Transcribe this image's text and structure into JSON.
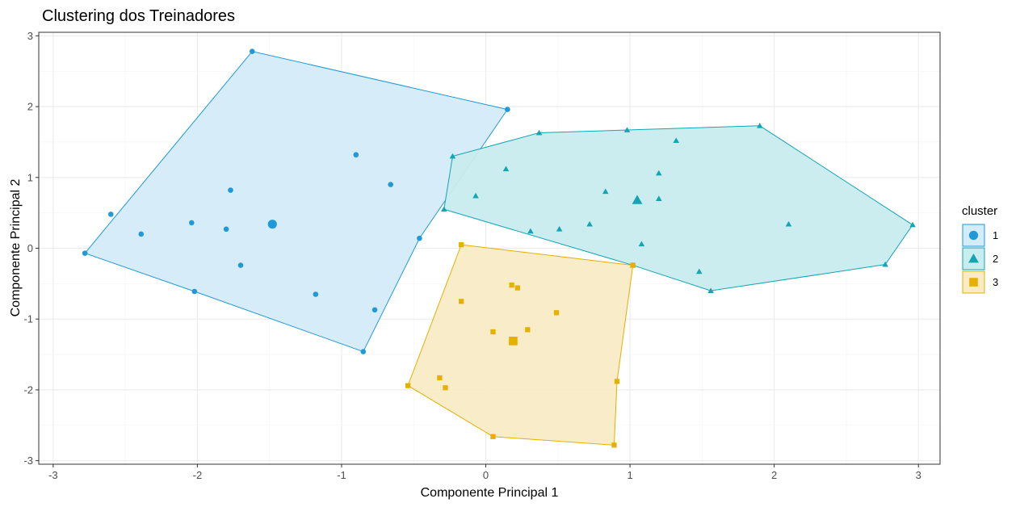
{
  "chart_data": {
    "type": "scatter",
    "title": "Clustering dos Treinadores",
    "xlabel": "Componente Principal 1",
    "ylabel": "Componente Principal 2",
    "xlim": [
      -3.1,
      3.15
    ],
    "ylim": [
      -3.05,
      3.05
    ],
    "xticks": [
      -3,
      -2,
      -1,
      0,
      1,
      2,
      3
    ],
    "yticks": [
      -3,
      -2,
      -1,
      0,
      1,
      2,
      3
    ],
    "grid": true,
    "legend": {
      "title": "cluster",
      "position": "right",
      "entries": [
        "1",
        "2",
        "3"
      ]
    },
    "series": [
      {
        "name": "1",
        "shape": "circle",
        "color": "#1f9ad6",
        "fill": "#d4ebf8",
        "points": [
          [
            -1.62,
            2.78
          ],
          [
            0.15,
            1.96
          ],
          [
            -2.6,
            0.48
          ],
          [
            -2.39,
            0.2
          ],
          [
            -2.04,
            0.36
          ],
          [
            -1.8,
            0.27
          ],
          [
            -1.77,
            0.82
          ],
          [
            -1.7,
            -0.24
          ],
          [
            -0.9,
            1.32
          ],
          [
            -0.66,
            0.9
          ],
          [
            -0.46,
            0.14
          ],
          [
            -2.78,
            -0.07
          ],
          [
            -2.02,
            -0.61
          ],
          [
            -1.18,
            -0.65
          ],
          [
            -0.77,
            -0.87
          ],
          [
            -0.85,
            -1.46
          ]
        ],
        "hull": [
          [
            -2.78,
            -0.07
          ],
          [
            -1.62,
            2.78
          ],
          [
            0.15,
            1.96
          ],
          [
            -0.46,
            0.14
          ],
          [
            -0.85,
            -1.46
          ],
          [
            -2.02,
            -0.61
          ]
        ],
        "centroid": [
          -1.48,
          0.34
        ]
      },
      {
        "name": "2",
        "shape": "triangle",
        "color": "#12a5b4",
        "fill": "#c9ecee",
        "points": [
          [
            -0.23,
            1.3
          ],
          [
            -0.29,
            0.55
          ],
          [
            -0.07,
            0.74
          ],
          [
            0.14,
            1.12
          ],
          [
            0.37,
            1.63
          ],
          [
            0.31,
            0.24
          ],
          [
            0.51,
            0.27
          ],
          [
            0.72,
            0.34
          ],
          [
            0.83,
            0.8
          ],
          [
            0.98,
            1.67
          ],
          [
            1.08,
            0.06
          ],
          [
            1.2,
            1.06
          ],
          [
            1.2,
            0.7
          ],
          [
            1.32,
            1.52
          ],
          [
            1.48,
            -0.33
          ],
          [
            1.56,
            -0.6
          ],
          [
            1.9,
            1.73
          ],
          [
            2.1,
            0.34
          ],
          [
            2.77,
            -0.23
          ],
          [
            2.96,
            0.33
          ],
          [
            1.02,
            -0.24
          ]
        ],
        "hull": [
          [
            -0.29,
            0.55
          ],
          [
            -0.23,
            1.3
          ],
          [
            0.37,
            1.63
          ],
          [
            0.98,
            1.67
          ],
          [
            1.9,
            1.73
          ],
          [
            2.96,
            0.33
          ],
          [
            2.77,
            -0.23
          ],
          [
            1.56,
            -0.6
          ],
          [
            1.02,
            -0.24
          ]
        ],
        "centroid": [
          1.05,
          0.68
        ]
      },
      {
        "name": "3",
        "shape": "square",
        "color": "#e5b000",
        "fill": "#f8ebc6",
        "points": [
          [
            -0.17,
            0.05
          ],
          [
            -0.17,
            -0.75
          ],
          [
            0.18,
            -0.52
          ],
          [
            0.22,
            -0.56
          ],
          [
            0.49,
            -0.91
          ],
          [
            0.05,
            -1.18
          ],
          [
            0.29,
            -1.15
          ],
          [
            -0.32,
            -1.83
          ],
          [
            -0.28,
            -1.97
          ],
          [
            -0.54,
            -1.94
          ],
          [
            0.05,
            -2.66
          ],
          [
            0.91,
            -1.88
          ],
          [
            0.89,
            -2.78
          ],
          [
            1.02,
            -0.24
          ]
        ],
        "hull": [
          [
            -0.17,
            0.05
          ],
          [
            1.02,
            -0.24
          ],
          [
            0.91,
            -1.88
          ],
          [
            0.89,
            -2.78
          ],
          [
            0.05,
            -2.66
          ],
          [
            -0.54,
            -1.94
          ]
        ],
        "centroid": [
          0.19,
          -1.31
        ]
      }
    ]
  }
}
